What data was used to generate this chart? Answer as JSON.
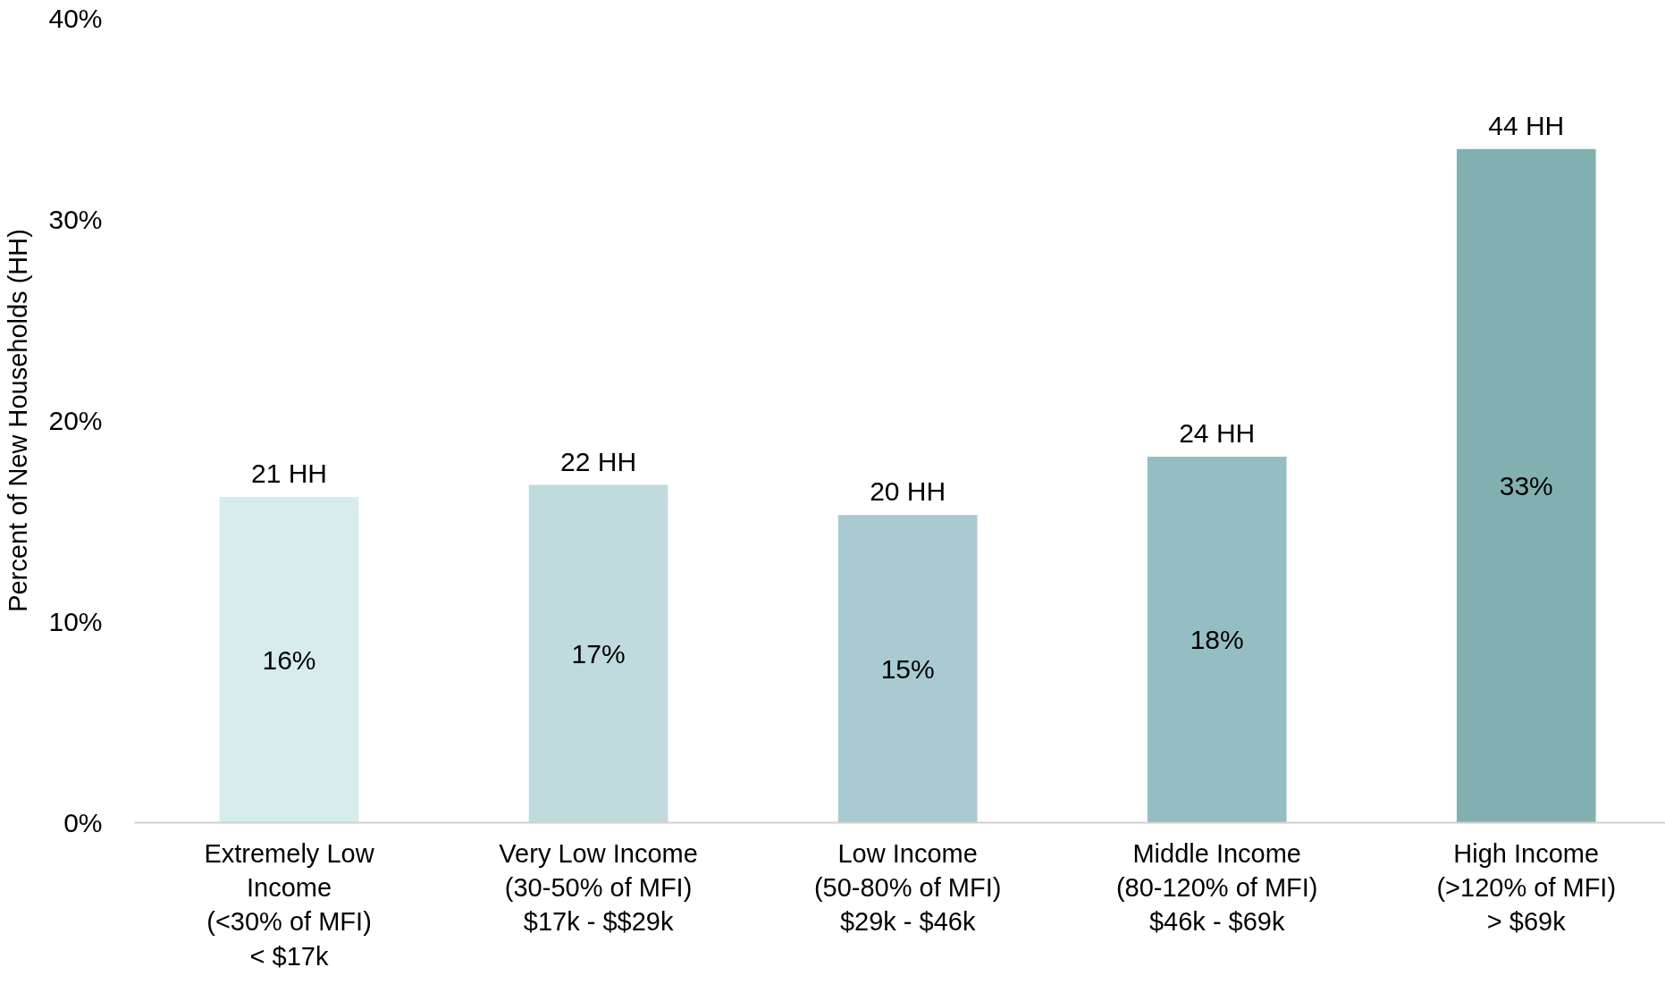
{
  "chart_data": {
    "type": "bar",
    "ylabel": "Percent of New Households (HH)",
    "categories": [
      "Extremely Low\nIncome\n(<30% of MFI)\n< $17k",
      "Very Low Income\n(30-50% of MFI)\n$17k - $$29k",
      "Low Income\n(50-80% of MFI)\n$29k - $46k",
      "Middle Income\n(80-120% of MFI)\n$46k - $69k",
      "High Income\n(>120% of MFI)\n> $69k"
    ],
    "values": [
      16.2,
      16.8,
      15.3,
      18.2,
      33.5
    ],
    "value_labels": [
      "16%",
      "17%",
      "15%",
      "18%",
      "33%"
    ],
    "colors": [
      "#d6eced",
      "#c0dbdd",
      "#a9cad0",
      "#95bec4",
      "#82b0b1"
    ],
    "annotations": [
      {
        "text": "21 HH",
        "x": "Extremely Low\nIncome\n(<30% of MFI)\n< $17k",
        "y": 16.2
      },
      {
        "text": "22 HH",
        "x": "Very Low Income\n(30-50% of MFI)\n$17k - $$29k",
        "y": 16.8
      },
      {
        "text": "20 HH",
        "x": "Low Income\n(50-80% of MFI)\n$29k - $46k",
        "y": 15.3
      },
      {
        "text": "24 HH",
        "x": "Middle Income\n(80-120% of MFI)\n$46k - $69k",
        "y": 18.2
      },
      {
        "text": "44 HH",
        "x": "High Income\n(>120% of MFI)\n> $69k",
        "y": 33.5
      }
    ],
    "ylim": [
      0,
      40
    ],
    "yticks": [
      {
        "value": 0,
        "label": "0%"
      },
      {
        "value": 10,
        "label": "10%"
      },
      {
        "value": 20,
        "label": "20%"
      },
      {
        "value": 30,
        "label": "30%"
      },
      {
        "value": 40,
        "label": "40%"
      }
    ],
    "grid": false
  }
}
